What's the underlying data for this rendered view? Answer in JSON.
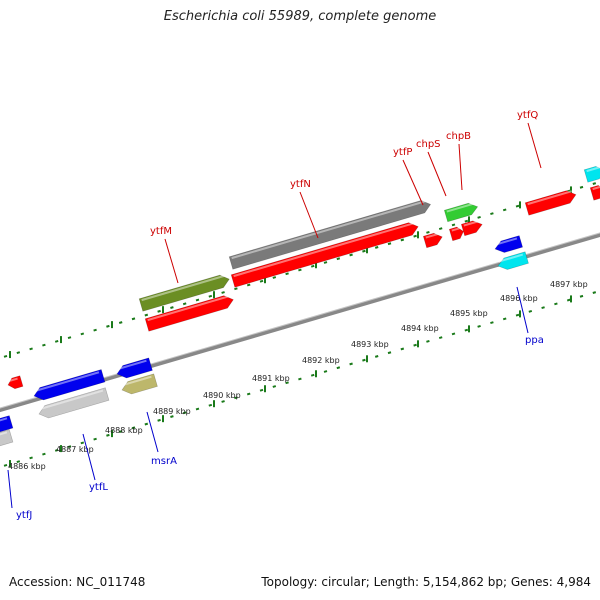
{
  "title": "Escherichia coli 55989, complete genome",
  "footer": {
    "accession": "Accession: NC_011748",
    "summary": "Topology: circular; Length: 5,154,862 bp; Genes: 4,984"
  },
  "colors": {
    "red": "#ff0000",
    "blue": "#0000ee",
    "gray": "#7a7a7a",
    "lightgray": "#c8c8c8",
    "olive": "#6b8e23",
    "khaki": "#bdb76b",
    "green": "#33cc33",
    "cyan": "#00e5ee",
    "label_red": "#cc0000",
    "label_blue": "#0000cc",
    "tick": "#1a7a1a"
  },
  "kbp_labels": [
    "4886 kbp",
    "4887 kbp",
    "4888 kbp",
    "4889 kbp",
    "4890 kbp",
    "4891 kbp",
    "4892 kbp",
    "4893 kbp",
    "4894 kbp",
    "4895 kbp",
    "4896 kbp",
    "4897 kbp"
  ],
  "genes": [
    {
      "id": "ytfJ",
      "label": "ytfJ",
      "strand": "reverse"
    },
    {
      "id": "ytfL",
      "label": "ytfL",
      "strand": "reverse"
    },
    {
      "id": "msrA",
      "label": "msrA",
      "strand": "reverse"
    },
    {
      "id": "ytfM",
      "label": "ytfM",
      "strand": "forward"
    },
    {
      "id": "ytfN",
      "label": "ytfN",
      "strand": "forward"
    },
    {
      "id": "ytfP",
      "label": "ytfP",
      "strand": "forward"
    },
    {
      "id": "chpS",
      "label": "chpS",
      "strand": "forward"
    },
    {
      "id": "chpB",
      "label": "chpB",
      "strand": "forward"
    },
    {
      "id": "ppa",
      "label": "ppa",
      "strand": "reverse"
    },
    {
      "id": "ytfQ",
      "label": "ytfQ",
      "strand": "forward"
    }
  ]
}
